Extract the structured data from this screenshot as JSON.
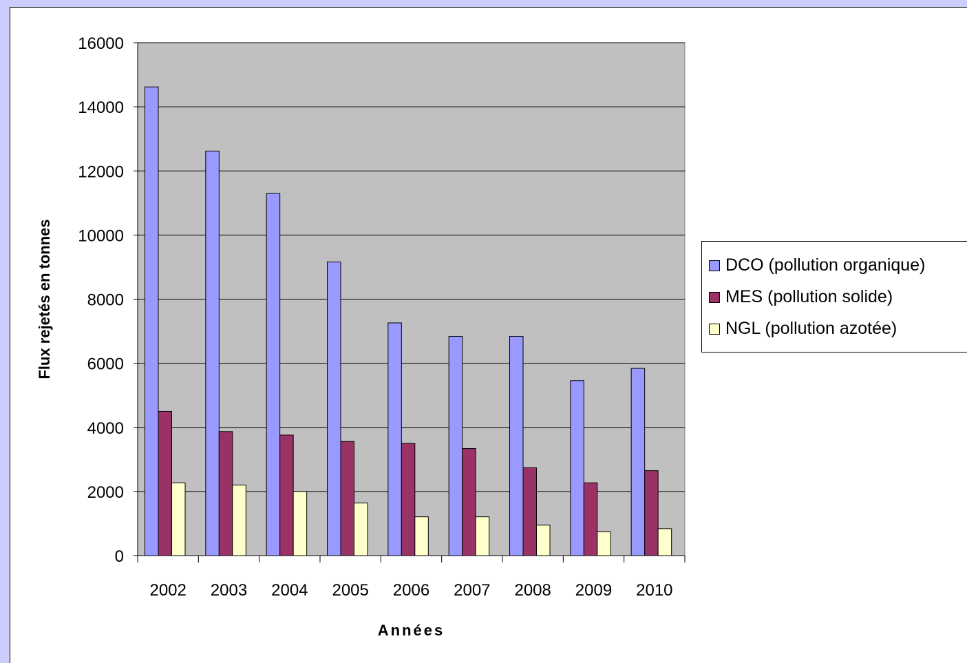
{
  "chart_data": {
    "type": "bar",
    "title": "",
    "xlabel": "Années",
    "ylabel": "Flux rejetés en tonnes",
    "ylim": [
      0,
      16000
    ],
    "yticks": [
      "0",
      "2000",
      "4000",
      "6000",
      "8000",
      "10000",
      "12000",
      "14000",
      "16000"
    ],
    "categories": [
      "2002",
      "2003",
      "2004",
      "2005",
      "2006",
      "2007",
      "2008",
      "2009",
      "2010"
    ],
    "series": [
      {
        "name": "DCO (pollution organique)",
        "color": "#9999ff",
        "values": [
          14620,
          12620,
          11300,
          9160,
          7260,
          6840,
          6840,
          5460,
          5840
        ]
      },
      {
        "name": "MES (pollution solide)",
        "color": "#993366",
        "values": [
          4500,
          3870,
          3760,
          3560,
          3500,
          3340,
          2740,
          2270,
          2650
        ]
      },
      {
        "name": "NGL (pollution azotée)",
        "color": "#ffffcc",
        "values": [
          2270,
          2200,
          2000,
          1640,
          1210,
          1210,
          950,
          740,
          840
        ]
      }
    ],
    "grid": true,
    "legend_position": "right",
    "plot_background": "#c0c0c0"
  }
}
